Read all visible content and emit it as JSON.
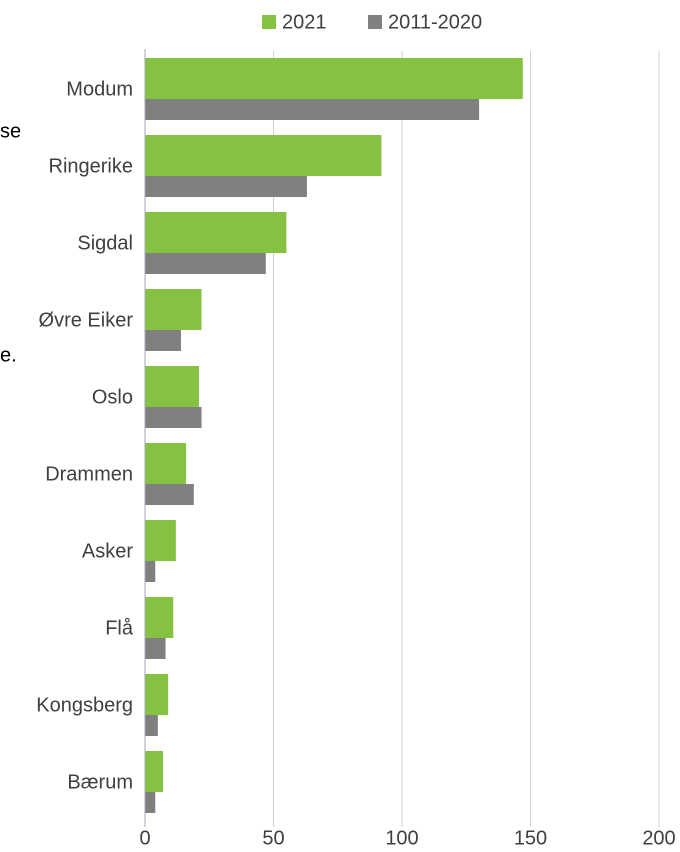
{
  "chart_data": {
    "type": "bar",
    "orientation": "horizontal",
    "categories": [
      "Modum",
      "Ringerike",
      "Sigdal",
      "Øvre Eiker",
      "Oslo",
      "Drammen",
      "Asker",
      "Flå",
      "Kongsberg",
      "Bærum"
    ],
    "series": [
      {
        "name": "2021",
        "color": "#86c242",
        "values": [
          147,
          92,
          55,
          22,
          21,
          16,
          12,
          11,
          9,
          7
        ]
      },
      {
        "name": "2011-2020",
        "color": "#808080",
        "values": [
          130,
          63,
          47,
          14,
          22,
          19,
          4,
          8,
          5,
          4
        ]
      }
    ],
    "xlim": [
      0,
      200
    ],
    "xticks": [
      0,
      50,
      100,
      150,
      200
    ],
    "grid": true,
    "legend": "top",
    "annotations": [
      "se",
      "e."
    ]
  }
}
